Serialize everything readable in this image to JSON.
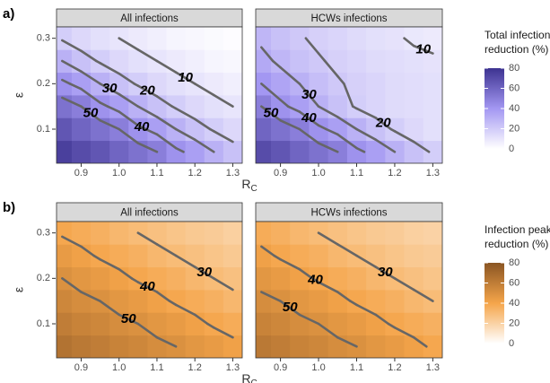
{
  "chart_data": [
    {
      "type": "heatmap",
      "label": "a)",
      "xlabel": "R",
      "xlabel_subscript": "C",
      "ylabel": "ε",
      "x": [
        0.85,
        0.9,
        0.95,
        1.0,
        1.05,
        1.1,
        1.15,
        1.2,
        1.25,
        1.3
      ],
      "y": [
        0.05,
        0.1,
        0.15,
        0.2,
        0.25,
        0.3
      ],
      "xlim": [
        0.835,
        1.325
      ],
      "ylim": [
        0.025,
        0.325
      ],
      "xticks": [
        0.9,
        {
          "value": 1,
          "label": "1.0"
        },
        1.1,
        1.2,
        1.3
      ],
      "yticks": [
        0.1,
        0.2,
        0.3
      ],
      "grid": true,
      "contour_levels": [
        10,
        20,
        30,
        40,
        50
      ],
      "contour_color": "#666666",
      "colorbar": {
        "title": [
          "Total infections",
          "reduction (%)"
        ],
        "limits": [
          0,
          80
        ],
        "ticks": [
          0,
          20,
          40,
          60,
          80
        ],
        "colors": [
          "#ffffff",
          "#a397f2",
          "#3d3391"
        ]
      },
      "panels": [
        {
          "title": "All infections",
          "values": [
            [
              75,
              70,
              66,
              60,
              55,
              50,
              42,
              37,
              30,
              24
            ],
            [
              66,
              60,
              55,
              50,
              42,
              37,
              30,
              24,
              19,
              15
            ],
            [
              55,
              50,
              42,
              37,
              30,
              24,
              19,
              15,
              12,
              10
            ],
            [
              42,
              37,
              30,
              24,
              19,
              15,
              12,
              10,
              8,
              6
            ],
            [
              30,
              24,
              19,
              15,
              12,
              10,
              8,
              6,
              4,
              3
            ],
            [
              19,
              15,
              12,
              10,
              8,
              6,
              4,
              3,
              2,
              1
            ]
          ]
        },
        {
          "title": "HCWs infections",
          "values": [
            [
              70,
              66,
              60,
              55,
              50,
              42,
              37,
              30,
              24,
              19
            ],
            [
              60,
              55,
              50,
              42,
              37,
              30,
              24,
              19,
              15,
              12
            ],
            [
              50,
              42,
              37,
              30,
              24,
              19,
              16,
              14,
              13,
              12
            ],
            [
              40,
              35,
              30,
              25,
              21,
              18,
              16,
              14,
              13,
              12
            ],
            [
              33,
              28,
              24,
              21,
              18,
              16,
              14,
              13,
              12,
              11
            ],
            [
              28,
              24,
              21,
              18,
              16,
              14,
              12,
              11,
              9,
              8
            ]
          ]
        }
      ]
    },
    {
      "type": "heatmap",
      "label": "b)",
      "xlabel": "R",
      "xlabel_subscript": "C",
      "ylabel": "ε",
      "x": [
        0.85,
        0.9,
        0.95,
        1.0,
        1.05,
        1.1,
        1.15,
        1.2,
        1.25,
        1.3
      ],
      "y": [
        0.05,
        0.1,
        0.15,
        0.2,
        0.25,
        0.3
      ],
      "xlim": [
        0.835,
        1.325
      ],
      "ylim": [
        0.025,
        0.325
      ],
      "xticks": [
        0.9,
        {
          "value": 1,
          "label": "1.0"
        },
        1.1,
        1.2,
        1.3
      ],
      "yticks": [
        0.1,
        0.2,
        0.3
      ],
      "grid": true,
      "contour_levels": [
        30,
        40,
        50
      ],
      "contour_color": "#666666",
      "colorbar": {
        "title": [
          "Infection peak",
          "reduction (%)"
        ],
        "limits": [
          0,
          80
        ],
        "ticks": [
          0,
          20,
          40,
          60,
          80
        ],
        "colors": [
          "#ffffff",
          "#f5a54a",
          "#8a5523"
        ]
      },
      "panels": [
        {
          "title": "All infections",
          "values": [
            [
              65,
              62,
              60,
              57,
              55,
              52,
              50,
              47,
              45,
              42
            ],
            [
              60,
              57,
              55,
              52,
              50,
              47,
              45,
              42,
              39,
              37
            ],
            [
              55,
              52,
              50,
              47,
              45,
              42,
              39,
              37,
              35,
              32
            ],
            [
              50,
              47,
              45,
              42,
              39,
              37,
              35,
              32,
              30,
              28
            ],
            [
              45,
              42,
              39,
              37,
              35,
              32,
              30,
              28,
              26,
              24
            ],
            [
              39,
              37,
              35,
              32,
              30,
              28,
              26,
              24,
              23,
              21
            ]
          ]
        },
        {
          "title": "HCWs infections",
          "values": [
            [
              62,
              60,
              57,
              55,
              52,
              50,
              47,
              45,
              42,
              39
            ],
            [
              57,
              55,
              52,
              50,
              47,
              45,
              42,
              39,
              37,
              35
            ],
            [
              52,
              50,
              47,
              45,
              42,
              39,
              37,
              35,
              32,
              30
            ],
            [
              47,
              45,
              42,
              39,
              37,
              35,
              32,
              30,
              28,
              26
            ],
            [
              42,
              39,
              37,
              35,
              32,
              30,
              28,
              26,
              24,
              23
            ],
            [
              37,
              35,
              32,
              30,
              28,
              26,
              24,
              23,
              21,
              20
            ]
          ]
        }
      ]
    }
  ]
}
